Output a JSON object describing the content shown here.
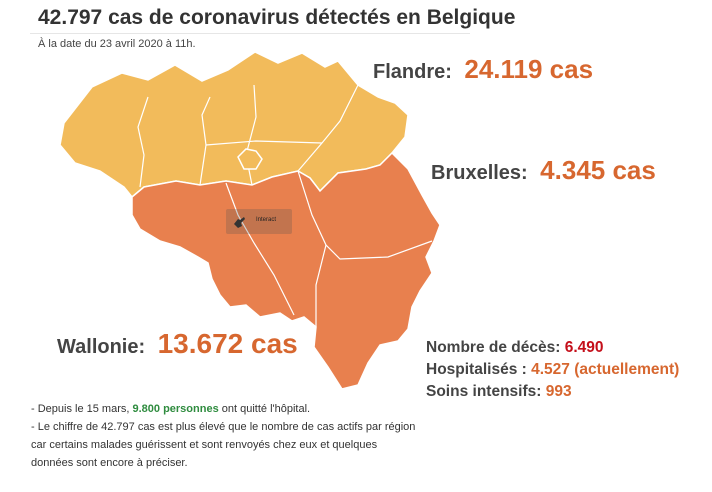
{
  "header": {
    "title": "42.797 cas de coronavirus détectés en Belgique",
    "subtitle": "À la date du 23 avril 2020 à 11h."
  },
  "colors": {
    "flandre": "#f2bb5b",
    "wallonie": "#e8804e",
    "value": "#d7672f",
    "deaths": "#c40f1a",
    "green": "#2f8c3f"
  },
  "regions": {
    "flandre": {
      "name": "Flandre:",
      "value": "24.119 cas"
    },
    "bruxelles": {
      "name": "Bruxelles:",
      "value": "4.345 cas"
    },
    "wallonie": {
      "name": "Wallonie:",
      "value": "13.672 cas"
    }
  },
  "stats": {
    "deaths": {
      "label": "Nombre de décès:",
      "value": "6.490"
    },
    "hospitalized": {
      "label": "Hospitalisés :",
      "value": "4.527 (actuellement)"
    },
    "intensive": {
      "label": "Soins intensifs:",
      "value": "993"
    }
  },
  "notes": {
    "line1_prefix": "- Depuis le 15 mars, ",
    "line1_highlight": "9.800 personnes",
    "line1_suffix": " ont quitté l'hôpital.",
    "line2": "- Le chiffre de 42.797 cas est plus élevé que le nombre de cas actifs par région",
    "line3": "car certains malades guérissent et sont renvoyés chez eux et quelques",
    "line4": "données sont encore à préciser."
  },
  "interact": {
    "label": "Interact",
    "icon": "pointer-hand-icon"
  }
}
